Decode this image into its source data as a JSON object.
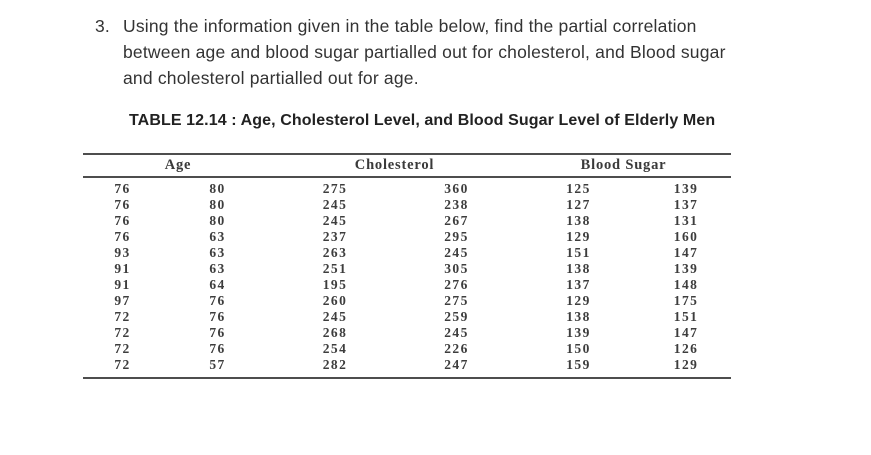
{
  "problem": {
    "number": "3.",
    "lines": [
      "Using the information given in the table below, find the partial correlation",
      "between age and blood sugar partialled out for cholesterol, and Blood sugar",
      "and cholesterol partialled out for age."
    ]
  },
  "table": {
    "title": "TABLE 12.14 : Age, Cholesterol Level, and Blood Sugar Level of Elderly Men",
    "group_headers": [
      "Age",
      "Cholesterol",
      "Blood Sugar"
    ],
    "rows": [
      [
        "76",
        "80",
        "275",
        "360",
        "125",
        "139"
      ],
      [
        "76",
        "80",
        "245",
        "238",
        "127",
        "137"
      ],
      [
        "76",
        "80",
        "245",
        "267",
        "138",
        "131"
      ],
      [
        "76",
        "63",
        "237",
        "295",
        "129",
        "160"
      ],
      [
        "93",
        "63",
        "263",
        "245",
        "151",
        "147"
      ],
      [
        "91",
        "63",
        "251",
        "305",
        "138",
        "139"
      ],
      [
        "91",
        "64",
        "195",
        "276",
        "137",
        "148"
      ],
      [
        "97",
        "76",
        "260",
        "275",
        "129",
        "175"
      ],
      [
        "72",
        "76",
        "245",
        "259",
        "138",
        "151"
      ],
      [
        "72",
        "76",
        "268",
        "245",
        "139",
        "147"
      ],
      [
        "72",
        "76",
        "254",
        "226",
        "150",
        "126"
      ],
      [
        "72",
        "57",
        "282",
        "247",
        "159",
        "129"
      ]
    ]
  },
  "colors": {
    "text": "#333333",
    "table_text": "#3d3d3d",
    "rule": "#4d4d4d",
    "background": "#ffffff"
  }
}
